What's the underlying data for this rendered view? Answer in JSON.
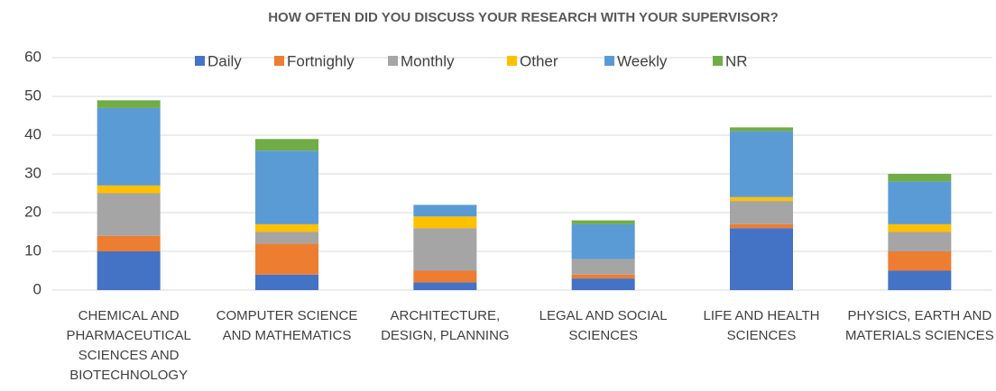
{
  "chart_data": {
    "type": "stacked_bar",
    "title": "HOW OFTEN DID YOU DISCUSS YOUR RESEARCH WITH YOUR SUPERVISOR?",
    "categories": [
      "CHEMICAL AND PHARMACEUTICAL SCIENCES AND BIOTECHNOLOGY",
      "COMPUTER SCIENCE AND MATHEMATICS",
      "ARCHITECTURE, DESIGN, PLANNING",
      "LEGAL AND SOCIAL SCIENCES",
      "LIFE AND HEALTH SCIENCES",
      "PHYSICS, EARTH AND MATERIALS SCIENCES"
    ],
    "series": [
      {
        "name": "Daily",
        "color": "#4472c4",
        "values": [
          10,
          4,
          2,
          3,
          16,
          5
        ]
      },
      {
        "name": "Fortnighly",
        "color": "#ed7d31",
        "values": [
          4,
          8,
          3,
          1,
          1,
          5
        ]
      },
      {
        "name": "Monthly",
        "color": "#a5a5a5",
        "values": [
          11,
          3,
          11,
          4,
          6,
          5
        ]
      },
      {
        "name": "Other",
        "color": "#ffc000",
        "values": [
          2,
          2,
          3,
          0,
          1,
          2
        ]
      },
      {
        "name": "Weekly",
        "color": "#5b9bd5",
        "values": [
          20,
          19,
          3,
          9,
          17,
          11
        ]
      },
      {
        "name": "NR",
        "color": "#70ad47",
        "values": [
          2,
          3,
          0,
          1,
          1,
          2
        ]
      }
    ],
    "ylim": [
      0,
      60
    ],
    "yticks": [
      0,
      10,
      20,
      30,
      40,
      50,
      60
    ],
    "grid": true,
    "legend": "top"
  }
}
